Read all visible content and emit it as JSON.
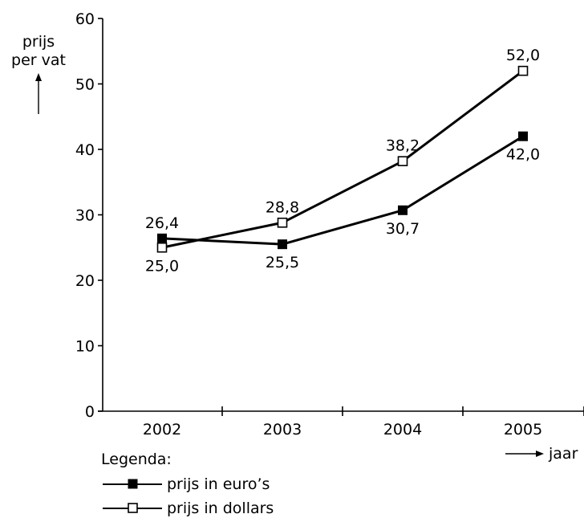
{
  "chart_data": {
    "type": "line",
    "title": "",
    "ylabel_lines": [
      "prijs",
      "per vat"
    ],
    "xlabel": "jaar",
    "categories": [
      "2002",
      "2003",
      "2004",
      "2005"
    ],
    "ylim": [
      0,
      60
    ],
    "yticks": [
      "0",
      "10",
      "20",
      "30",
      "40",
      "50",
      "60"
    ],
    "grid": false,
    "legend_title": "Legenda:",
    "legend_position": "bottom-left",
    "series": [
      {
        "name": "prijs in euro’s",
        "marker": "filled-square",
        "values": [
          26.4,
          25.5,
          30.7,
          42.0
        ],
        "value_labels": [
          "26,4",
          "25,5",
          "30,7",
          "42,0"
        ],
        "label_positions": [
          "above",
          "below",
          "below",
          "below"
        ]
      },
      {
        "name": "prijs in dollars",
        "marker": "open-square",
        "values": [
          25.0,
          28.8,
          38.2,
          52.0
        ],
        "value_labels": [
          "25,0",
          "28,8",
          "38,2",
          "52,0"
        ],
        "label_positions": [
          "below",
          "above",
          "above",
          "above"
        ]
      }
    ]
  }
}
